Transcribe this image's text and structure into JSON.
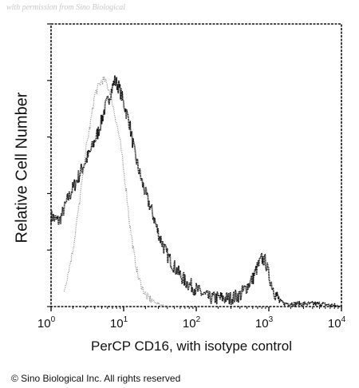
{
  "watermark": "with permission from Sino Biological",
  "copyright": "© Sino Biological Inc. All rights reserved",
  "chart_data": {
    "type": "area",
    "title": "",
    "xlabel": "PerCP CD16, with isotype control",
    "ylabel": "Relative Cell Number",
    "xscale": "log",
    "xlim": [
      1,
      10000
    ],
    "ylim": [
      0,
      100
    ],
    "x_ticks": [
      {
        "base": "10",
        "exp": "0",
        "value": 1
      },
      {
        "base": "10",
        "exp": "1",
        "value": 10
      },
      {
        "base": "10",
        "exp": "2",
        "value": 100
      },
      {
        "base": "10",
        "exp": "3",
        "value": 1000
      },
      {
        "base": "10",
        "exp": "4",
        "value": 10000
      }
    ],
    "series": [
      {
        "color": "#111111",
        "x": [
          1,
          1.3,
          1.7,
          2.2,
          2.8,
          3.5,
          4.5,
          5.5,
          6.5,
          7.5,
          8.5,
          10,
          12,
          14,
          17,
          20,
          25,
          30,
          40,
          50,
          70,
          100,
          150,
          200,
          300,
          400,
          500,
          600,
          700,
          800,
          900,
          1000,
          1200,
          1400,
          1700,
          2000,
          3000,
          5000,
          10000
        ],
        "values": [
          32,
          30,
          38,
          44,
          50,
          55,
          62,
          70,
          75,
          80,
          78,
          72,
          65,
          55,
          46,
          40,
          33,
          26,
          18,
          14,
          9,
          6,
          3,
          3,
          3,
          4,
          7,
          10,
          14,
          17,
          16,
          11,
          5,
          2,
          1,
          1,
          1,
          1,
          0
        ]
      },
      {
        "color": "#8c8c8c",
        "x": [
          1.5,
          2,
          2.5,
          3,
          3.5,
          4,
          4.5,
          5,
          5.5,
          6,
          6.5,
          7,
          8,
          9,
          10,
          11,
          12,
          14,
          16,
          20,
          25,
          30,
          40
        ],
        "values": [
          5,
          20,
          38,
          55,
          65,
          75,
          78,
          80,
          80,
          78,
          76,
          72,
          65,
          58,
          48,
          40,
          30,
          18,
          10,
          4,
          2,
          1,
          0
        ]
      }
    ]
  }
}
